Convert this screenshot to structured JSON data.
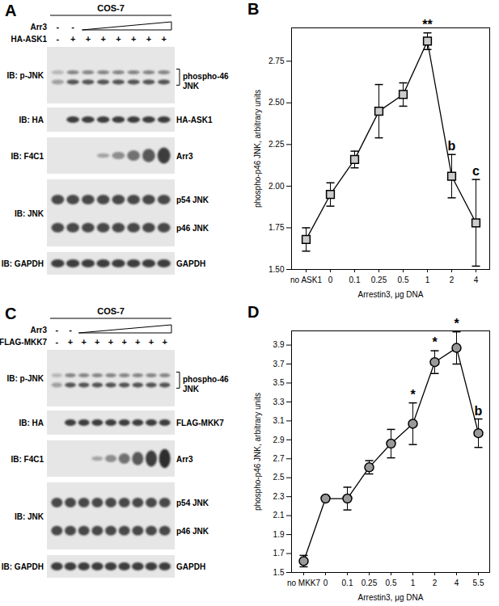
{
  "chart_data": [
    {
      "type": "line",
      "title": "B",
      "x_label": "Arrestin3, μg DNA",
      "y_label": "phospho-p46 JNK, arbitrary units",
      "categories": [
        "no ASK1",
        "0",
        "0.1",
        "0.25",
        "0.5",
        "1",
        "2",
        "4"
      ],
      "values": [
        1.68,
        1.95,
        2.16,
        2.45,
        2.55,
        2.87,
        2.06,
        1.78
      ],
      "errors": [
        0.07,
        0.07,
        0.05,
        0.16,
        0.07,
        0.05,
        0.13,
        0.26
      ],
      "color": "#cccccc",
      "marker": "square",
      "ylim": [
        1.5,
        2.95
      ],
      "yticks": [
        {
          "value": 1.5,
          "label": "1.50"
        },
        1.75,
        {
          "value": 2,
          "label": "2.00"
        },
        2.25,
        {
          "value": 2.5,
          "label": "2.50"
        },
        2.75
      ],
      "annotations": [
        {
          "category": "1",
          "text": "**"
        },
        {
          "category": "2",
          "text": "b"
        },
        {
          "category": "4",
          "text": "c"
        }
      ]
    },
    {
      "type": "line",
      "title": "D",
      "x_label": "Arrestin3, μg DNA",
      "y_label": "phospho-p46 JNK, arbitrary units",
      "categories": [
        "no MKK7",
        "0",
        "0.1",
        "0.25",
        "0.5",
        "1",
        "2",
        "4",
        "5.5"
      ],
      "values": [
        1.62,
        2.28,
        2.28,
        2.61,
        2.86,
        3.07,
        3.72,
        3.87,
        2.97
      ],
      "errors": [
        0.06,
        0.02,
        0.12,
        0.07,
        0.15,
        0.22,
        0.12,
        0.17,
        0.15
      ],
      "color": "#999999",
      "marker": "circle",
      "ylim": [
        1.5,
        4.05
      ],
      "yticks": [
        1.5,
        1.7,
        1.9,
        2.1,
        2.3,
        2.5,
        2.7,
        2.9,
        3.1,
        3.3,
        3.5,
        3.7,
        3.9
      ],
      "annotations": [
        {
          "category": "1",
          "text": "*"
        },
        {
          "category": "2",
          "text": "*"
        },
        {
          "category": "4",
          "text": "*"
        },
        {
          "category": "5.5",
          "text": "b"
        }
      ]
    }
  ],
  "blots": [
    {
      "panel": "A",
      "cell_line": "COS-7",
      "treatments": [
        {
          "name": "Arr3",
          "lanes": [
            "-",
            "-"
          ]
        },
        {
          "name": "HA-ASK1",
          "lanes": [
            "-",
            "+",
            "+",
            "+",
            "+",
            "+",
            "+",
            "+"
          ]
        }
      ],
      "rows": [
        {
          "ib": "IB: p-JNK",
          "labels": [
            "phospho-46",
            "JNK"
          ],
          "bracket": true
        },
        {
          "ib": "IB: HA",
          "labels": [
            "HA-ASK1"
          ]
        },
        {
          "ib": "IB: F4C1",
          "labels": [
            "Arr3"
          ]
        },
        {
          "ib": "IB: JNK",
          "labels": [
            "p54 JNK",
            "p46 JNK"
          ]
        },
        {
          "ib": "IB: GAPDH",
          "labels": [
            "GAPDH"
          ]
        }
      ]
    },
    {
      "panel": "C",
      "cell_line": "COS-7",
      "treatments": [
        {
          "name": "Arr3",
          "lanes": [
            "-",
            "-"
          ]
        },
        {
          "name": "FLAG-MKK7",
          "lanes": [
            "-",
            "+",
            "+",
            "+",
            "+",
            "+",
            "+",
            "+",
            "+"
          ]
        }
      ],
      "rows": [
        {
          "ib": "IB: p-JNK",
          "labels": [
            "phospho-46",
            "JNK"
          ],
          "bracket": true
        },
        {
          "ib": "IB: HA",
          "labels": [
            "FLAG-MKK7"
          ]
        },
        {
          "ib": "IB: F4C1",
          "labels": [
            "Arr3"
          ]
        },
        {
          "ib": "IB: JNK",
          "labels": [
            "p54 JNK",
            "p46 JNK"
          ]
        },
        {
          "ib": "IB: GAPDH",
          "labels": [
            "GAPDH"
          ]
        }
      ]
    }
  ]
}
